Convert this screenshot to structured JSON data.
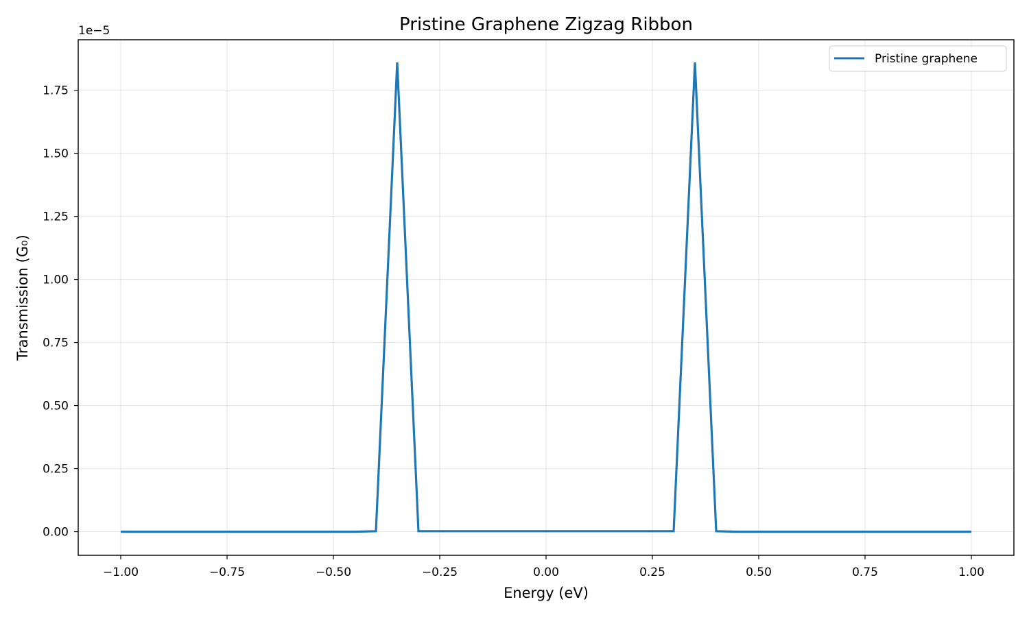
{
  "chart_data": {
    "type": "line",
    "title": "Pristine Graphene Zigzag Ribbon",
    "xlabel": "Energy (eV)",
    "ylabel": "Transmission (G₀)",
    "y_offset_label": "1e−5",
    "xlim": [
      -1.1,
      1.1
    ],
    "ylim": [
      -9.36e-07,
      1.95e-05
    ],
    "grid": true,
    "legend_position": "top-right",
    "x_ticks": [
      -1.0,
      -0.75,
      -0.5,
      -0.25,
      0.0,
      0.25,
      0.5,
      0.75,
      1.0
    ],
    "x_tick_labels": [
      "−1.00",
      "−0.75",
      "−0.50",
      "−0.25",
      "0.00",
      "0.25",
      "0.50",
      "0.75",
      "1.00"
    ],
    "y_ticks": [
      0,
      2.5e-06,
      5e-06,
      7.5e-06,
      1e-05,
      1.25e-05,
      1.5e-05,
      1.75e-05
    ],
    "y_tick_labels": [
      "0.00",
      "0.25",
      "0.50",
      "0.75",
      "1.00",
      "1.25",
      "1.50",
      "1.75"
    ],
    "series": [
      {
        "name": "Pristine graphene",
        "color": "#1f77b4",
        "x": [
          -1.0,
          -0.45,
          -0.4,
          -0.35,
          -0.3,
          0.3,
          0.35,
          0.4,
          0.45,
          1.0
        ],
        "y": [
          0,
          0,
          2e-08,
          1.86e-05,
          2e-08,
          2e-08,
          1.86e-05,
          2e-08,
          0,
          0
        ]
      }
    ]
  }
}
